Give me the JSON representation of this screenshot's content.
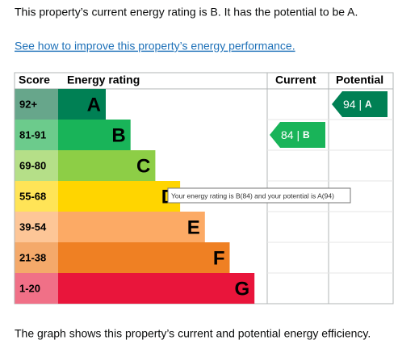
{
  "intro": "This property’s current energy rating is B. It has the potential to be A.",
  "link": "See how to improve this property’s energy performance.",
  "table": {
    "headers": {
      "score": "Score",
      "rating": "Energy rating",
      "current": "Current",
      "potential": "Potential"
    },
    "rows": [
      {
        "score": "92+",
        "letter": "A",
        "color": "#008054",
        "score_color": "#67a68b"
      },
      {
        "score": "81-91",
        "letter": "B",
        "color": "#19b459",
        "score_color": "#6ccb8c"
      },
      {
        "score": "69-80",
        "letter": "C",
        "color": "#8dce46",
        "score_color": "#b5df88"
      },
      {
        "score": "55-68",
        "letter": "D",
        "color": "#ffd500",
        "score_color": "#ffe457"
      },
      {
        "score": "39-54",
        "letter": "E",
        "color": "#fcaa65",
        "score_color": "#fdc697"
      },
      {
        "score": "21-38",
        "letter": "F",
        "color": "#ef8023",
        "score_color": "#f4a96a"
      },
      {
        "score": "1-20",
        "letter": "G",
        "color": "#e9153b",
        "score_color": "#f07087"
      }
    ],
    "current": {
      "value": 84,
      "letter": "B"
    },
    "potential": {
      "value": 94,
      "letter": "A"
    }
  },
  "tooltip": "Your energy rating is B(84) and your potential is A(94)",
  "footer": "The graph shows this property’s current and potential energy efficiency."
}
